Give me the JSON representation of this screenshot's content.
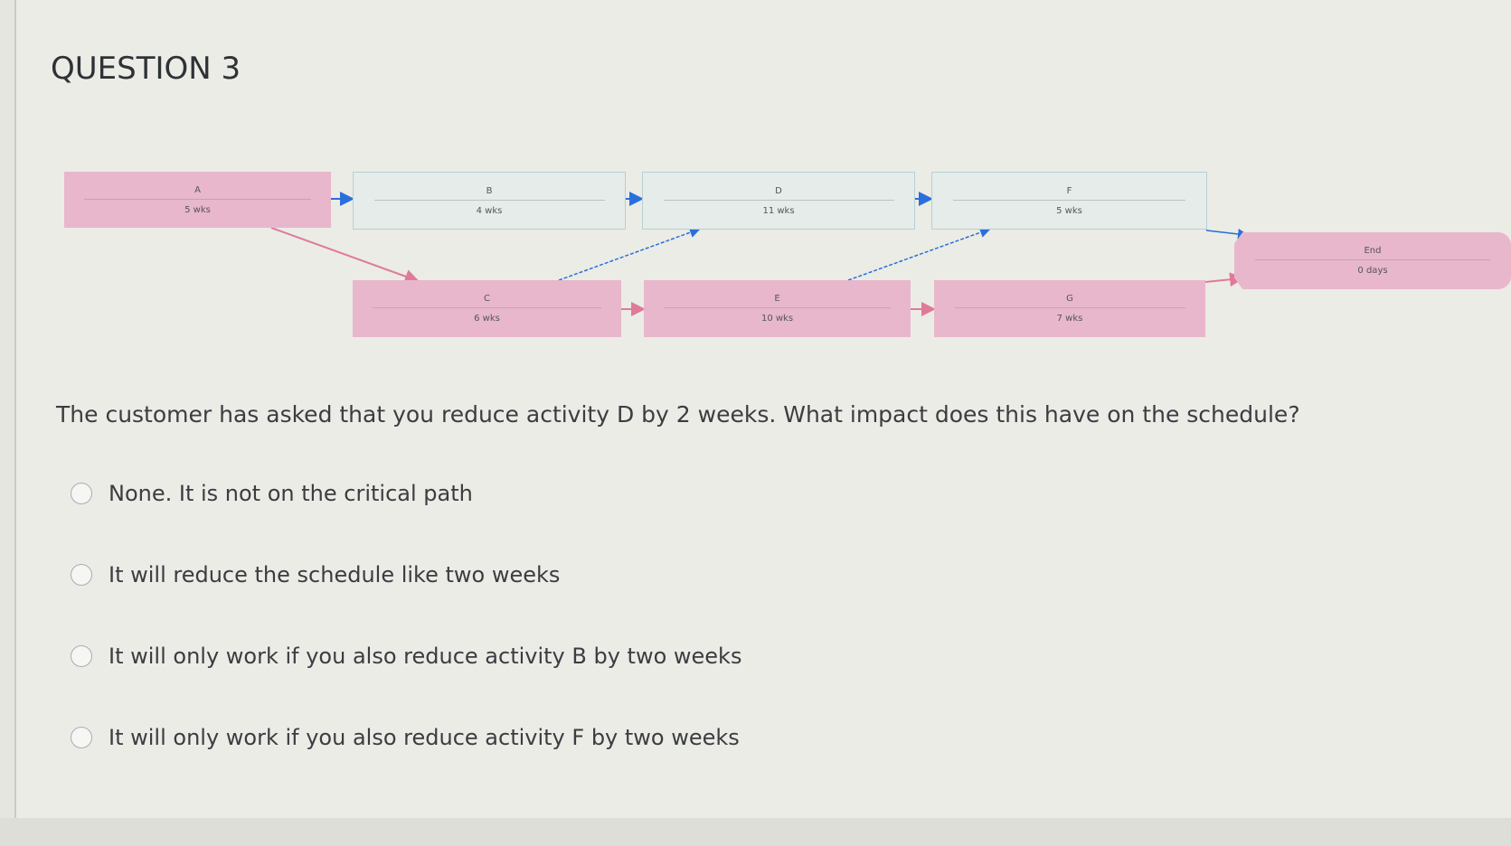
{
  "title": "QUESTION 3",
  "diagram": {
    "nodes": [
      {
        "id": "A",
        "duration": "5 wks",
        "critical": true
      },
      {
        "id": "B",
        "duration": "4 wks",
        "critical": false
      },
      {
        "id": "D",
        "duration": "11 wks",
        "critical": false
      },
      {
        "id": "F",
        "duration": "5 wks",
        "critical": false
      },
      {
        "id": "C",
        "duration": "6 wks",
        "critical": true
      },
      {
        "id": "E",
        "duration": "10 wks",
        "critical": true
      },
      {
        "id": "G",
        "duration": "7 wks",
        "critical": true
      },
      {
        "id": "End",
        "duration": "0 days",
        "critical": true
      }
    ],
    "colors": {
      "critical": "#e8b7cb",
      "noncritical": "#e6ecea",
      "critical_arrow": "#e07a9a",
      "noncritical_arrow": "#2a6fdc"
    }
  },
  "question": "The customer has asked that you reduce activity D by 2 weeks. What impact does this have on the schedule?",
  "options": [
    "None. It is not on the critical path",
    "It will reduce the schedule like two weeks",
    "It will only work if you also reduce activity B by two weeks",
    "It will only work if you also reduce activity F by two weeks"
  ]
}
